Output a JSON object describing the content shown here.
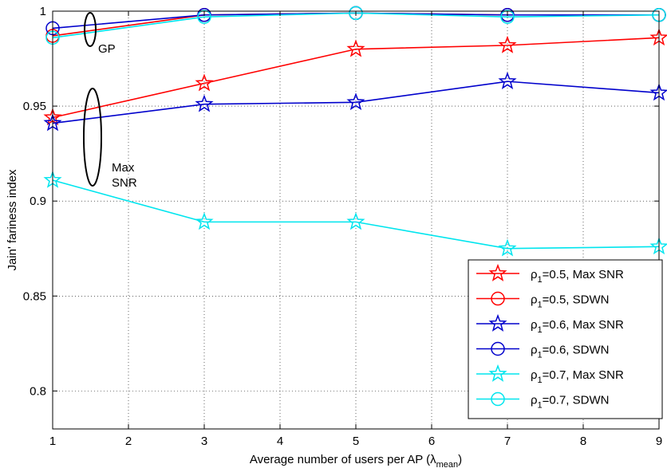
{
  "chart_data": {
    "type": "line",
    "xlabel": "Average number of users per AP (λ",
    "xlabel_sub": "mean",
    "xlabel_end": ")",
    "ylabel": "Jain' fariness index",
    "xlim": [
      1,
      9
    ],
    "ylim": [
      0.78,
      1.0
    ],
    "xticks": [
      1,
      2,
      3,
      4,
      5,
      6,
      7,
      8,
      9
    ],
    "yticks": [
      0.8,
      0.85,
      0.9,
      0.95,
      1.0
    ],
    "ytick_labels": [
      "0.8",
      "0.85",
      "0.9",
      "0.95",
      "1"
    ],
    "grid": true,
    "legend_position": "bottom-right",
    "x": [
      1,
      3,
      5,
      7,
      9
    ],
    "series": [
      {
        "name": "ρ1=0.5, Max SNR",
        "greek": "ρ",
        "sub": "1",
        "rest": "=0.5, Max SNR",
        "color": "#ff0000",
        "marker": "star",
        "values": [
          0.944,
          0.962,
          0.98,
          0.982,
          0.986
        ]
      },
      {
        "name": "ρ1=0.5, SDWN",
        "greek": "ρ",
        "sub": "1",
        "rest": "=0.5, SDWN",
        "color": "#ff0000",
        "marker": "circle",
        "values": [
          0.987,
          0.998,
          0.999,
          0.998,
          0.998
        ]
      },
      {
        "name": "ρ1=0.6, Max SNR",
        "greek": "ρ",
        "sub": "1",
        "rest": "=0.6, Max SNR",
        "color": "#0000cc",
        "marker": "star",
        "values": [
          0.941,
          0.951,
          0.952,
          0.963,
          0.957
        ]
      },
      {
        "name": "ρ1=0.6, SDWN",
        "greek": "ρ",
        "sub": "1",
        "rest": "=0.6, SDWN",
        "color": "#0000cc",
        "marker": "circle",
        "values": [
          0.991,
          0.998,
          0.999,
          0.998,
          0.998
        ]
      },
      {
        "name": "ρ1=0.7, Max SNR",
        "greek": "ρ",
        "sub": "1",
        "rest": "=0.7, Max SNR",
        "color": "#00e5ee",
        "marker": "star",
        "values": [
          0.911,
          0.889,
          0.889,
          0.875,
          0.876
        ]
      },
      {
        "name": "ρ1=0.7, SDWN",
        "greek": "ρ",
        "sub": "1",
        "rest": "=0.7, SDWN",
        "color": "#00e5ee",
        "marker": "circle",
        "values": [
          0.986,
          0.997,
          0.999,
          0.997,
          0.998
        ]
      }
    ],
    "annotations": [
      {
        "text": "GP"
      },
      {
        "text": "Max"
      },
      {
        "text": "SNR"
      }
    ]
  }
}
